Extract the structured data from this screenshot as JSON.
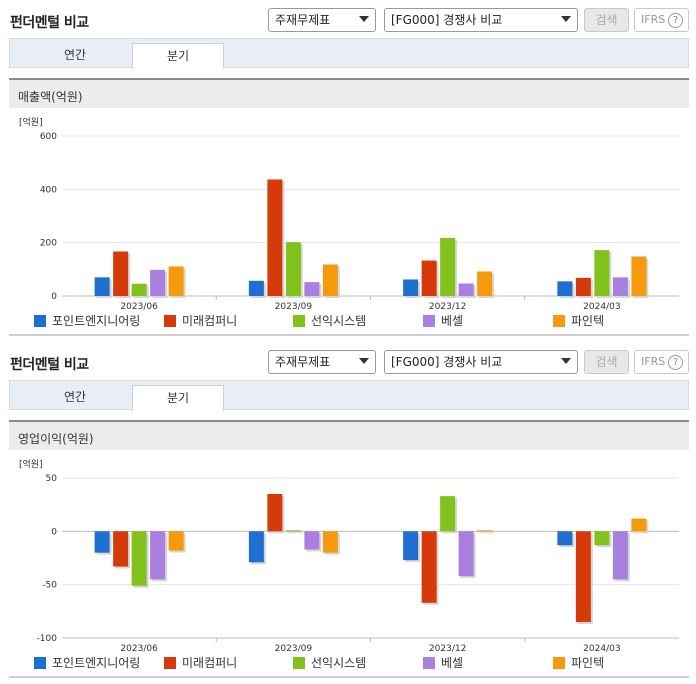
{
  "colors": [
    "#1f6fd1",
    "#d63a0a",
    "#82c21d",
    "#a97fe0",
    "#f59a0c"
  ],
  "legend": [
    "포인트엔지니어링",
    "미래컴퍼니",
    "선익시스템",
    "베셀",
    "파인텍"
  ],
  "panels": [
    {
      "title": "펀더멘털 비교",
      "select1": "주재무제표",
      "select2": "[FG000] 경쟁사 비교",
      "search_label": "검색",
      "ifrs_label": "IFRS",
      "help_icon": "?",
      "tabs": [
        "연간",
        "분기"
      ],
      "section_title": "매출액(억원)",
      "unit": "[억원]"
    },
    {
      "title": "펀더멘털 비교",
      "select1": "주재무제표",
      "select2": "[FG000] 경쟁사 비교",
      "search_label": "검색",
      "ifrs_label": "IFRS",
      "help_icon": "?",
      "tabs": [
        "연간",
        "분기"
      ],
      "section_title": "영업이익(억원)",
      "unit": "[억원]"
    }
  ],
  "chart_data": [
    {
      "type": "bar",
      "categories": [
        "2023/06",
        "2023/09",
        "2023/12",
        "2024/03"
      ],
      "series": [
        {
          "name": "포인트엔지니어링",
          "values": [
            70,
            57,
            62,
            55
          ]
        },
        {
          "name": "미래컴퍼니",
          "values": [
            167,
            437,
            133,
            68
          ]
        },
        {
          "name": "선익시스템",
          "values": [
            46,
            202,
            218,
            172
          ]
        },
        {
          "name": "베셀",
          "values": [
            98,
            52,
            47,
            70
          ]
        },
        {
          "name": "파인텍",
          "values": [
            111,
            118,
            92,
            148
          ]
        }
      ],
      "ylabel": "[억원]",
      "yticks": [
        0,
        200,
        400,
        600
      ],
      "ylim": [
        0,
        600
      ]
    },
    {
      "type": "bar",
      "categories": [
        "2023/06",
        "2023/09",
        "2023/12",
        "2024/03"
      ],
      "series": [
        {
          "name": "포인트엔지니어링",
          "values": [
            -20,
            -29,
            -27,
            -13
          ]
        },
        {
          "name": "미래컴퍼니",
          "values": [
            -33,
            35,
            -67,
            -85
          ]
        },
        {
          "name": "선익시스템",
          "values": [
            -51,
            1,
            33,
            -13
          ]
        },
        {
          "name": "베셀",
          "values": [
            -45,
            -17,
            -42,
            -45
          ]
        },
        {
          "name": "파인텍",
          "values": [
            -18,
            -20,
            1,
            12
          ]
        }
      ],
      "ylabel": "[억원]",
      "yticks": [
        50,
        0,
        -50,
        -100
      ],
      "ylim": [
        -100,
        50
      ]
    }
  ]
}
